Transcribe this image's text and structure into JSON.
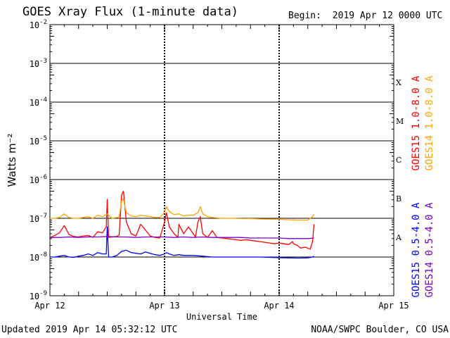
{
  "header": {
    "title": "GOES Xray Flux (1-minute data)",
    "begin_label": "Begin:",
    "begin_value": "2019 Apr 12 0000 UTC"
  },
  "footer": {
    "updated": "Updated 2019 Apr 14 05:32:12 UTC",
    "credit": "NOAA/SWPC Boulder, CO USA"
  },
  "chart_data": {
    "type": "line",
    "title": "GOES Xray Flux (1-minute data)",
    "xlabel": "Universal Time",
    "ylabel": "Watts m⁻²",
    "yscale": "log",
    "ylim": [
      1e-09,
      0.01
    ],
    "xlim": [
      0,
      72
    ],
    "x_units": "hours since 2019 Apr 12 0000 UTC",
    "x_ticks": [
      {
        "x": 0,
        "label": "Apr 12"
      },
      {
        "x": 24,
        "label": "Apr 13"
      },
      {
        "x": 48,
        "label": "Apr 14"
      },
      {
        "x": 72,
        "label": "Apr 15"
      }
    ],
    "y_ticks": [
      {
        "value": 1e-09,
        "base": "10",
        "exp": "-9"
      },
      {
        "value": 1e-08,
        "base": "10",
        "exp": "-8"
      },
      {
        "value": 1e-07,
        "base": "10",
        "exp": "-7"
      },
      {
        "value": 1e-06,
        "base": "10",
        "exp": "-6"
      },
      {
        "value": 1e-05,
        "base": "10",
        "exp": "-5"
      },
      {
        "value": 0.0001,
        "base": "10",
        "exp": "-4"
      },
      {
        "value": 0.001,
        "base": "10",
        "exp": "-3"
      },
      {
        "value": 0.01,
        "base": "10",
        "exp": "-2"
      }
    ],
    "flare_classes": [
      {
        "label": "A",
        "value": 3.2e-08
      },
      {
        "label": "B",
        "value": 3.2e-07
      },
      {
        "label": "C",
        "value": 3.2e-06
      },
      {
        "label": "M",
        "value": 3.2e-05
      },
      {
        "label": "X",
        "value": 0.00032
      }
    ],
    "grid": "horizontal decade lines, dashed day separators",
    "legend_placement": "right",
    "series": [
      {
        "name": "GOES15 1.0-8.0 A",
        "color": "#ff0000",
        "x": [
          0,
          1,
          2,
          3,
          4,
          5,
          6,
          7,
          8,
          9,
          10,
          11,
          11.8,
          12,
          12.3,
          13,
          14,
          14.5,
          15,
          15.4,
          15.7,
          16,
          17,
          18,
          19,
          20,
          21,
          22,
          23,
          24,
          24.4,
          25,
          26,
          26.8,
          27,
          28,
          29,
          30,
          30.5,
          31,
          31.5,
          32,
          33,
          34,
          35,
          36,
          37,
          38,
          39,
          40,
          41,
          42,
          43,
          44,
          45,
          46,
          47,
          48,
          49,
          50,
          50.8,
          51,
          51.8,
          52.5,
          53.5,
          54.5,
          55,
          55.3
        ],
        "y": [
          3.2e-08,
          3.6e-08,
          4.2e-08,
          6.5e-08,
          3.8e-08,
          3.4e-08,
          3.3e-08,
          3.5e-08,
          3.6e-08,
          3.2e-08,
          4.5e-08,
          4.2e-08,
          6e-08,
          3.1e-07,
          3.2e-08,
          3.3e-08,
          3.4e-08,
          3.7e-08,
          4e-07,
          5e-07,
          2e-07,
          8e-08,
          4e-08,
          3.5e-08,
          7e-08,
          5e-08,
          3.5e-08,
          3.2e-08,
          3.1e-08,
          8e-08,
          1.4e-07,
          6e-08,
          4e-08,
          3.2e-08,
          7e-08,
          4e-08,
          6e-08,
          4e-08,
          3.3e-08,
          8e-08,
          1.1e-07,
          4e-08,
          3.2e-08,
          4.8e-08,
          3.2e-08,
          3.1e-08,
          3e-08,
          2.9e-08,
          2.8e-08,
          2.7e-08,
          2.8e-08,
          2.7e-08,
          2.6e-08,
          2.5e-08,
          2.4e-08,
          2.3e-08,
          2.2e-08,
          2.3e-08,
          2.2e-08,
          2.1e-08,
          2.5e-08,
          2.2e-08,
          2e-08,
          1.7e-08,
          1.8e-08,
          1.6e-08,
          2.5e-08,
          7e-08
        ]
      },
      {
        "name": "GOES14 1.0-8.0 A",
        "color": "#ffa500",
        "x": [
          0,
          1,
          2,
          3,
          4,
          5,
          6,
          7,
          8,
          9,
          10,
          11,
          12,
          13,
          14,
          14.5,
          15,
          15.4,
          15.7,
          16,
          17,
          18,
          19,
          20,
          21,
          22,
          23,
          24,
          24.4,
          25,
          26,
          27,
          28,
          29,
          30,
          31,
          31.5,
          32,
          33,
          34,
          36,
          38,
          40,
          42,
          44,
          46,
          48,
          50,
          52,
          54,
          55,
          55.3
        ],
        "y": [
          1e-07,
          1e-07,
          1.05e-07,
          1.3e-07,
          1.05e-07,
          1e-07,
          1e-07,
          1.05e-07,
          1.1e-07,
          1e-07,
          1.2e-07,
          1.1e-07,
          1.3e-07,
          1e-07,
          1.05e-07,
          1.1e-07,
          2.8e-07,
          3.2e-07,
          2e-07,
          1.4e-07,
          1.15e-07,
          1.1e-07,
          1.2e-07,
          1.15e-07,
          1.1e-07,
          1.05e-07,
          1.05e-07,
          1.4e-07,
          2e-07,
          1.5e-07,
          1.25e-07,
          1.3e-07,
          1.15e-07,
          1.2e-07,
          1.2e-07,
          1.4e-07,
          2e-07,
          1.3e-07,
          1.1e-07,
          1.05e-07,
          1e-07,
          1e-07,
          9.8e-08,
          9.8e-08,
          9.6e-08,
          9.5e-08,
          9.4e-08,
          9.2e-08,
          9e-08,
          9e-08,
          1.1e-07,
          1.3e-07
        ]
      },
      {
        "name": "GOES15 0.5-4.0 A",
        "color": "#0000ff",
        "x": [
          0,
          1,
          2,
          3,
          4,
          5,
          6,
          7,
          8,
          9,
          10,
          11,
          11.8,
          12,
          12.3,
          13,
          14,
          15,
          16,
          17,
          18,
          19,
          20,
          21,
          22,
          23,
          24,
          24.4,
          25,
          26,
          27,
          28,
          30,
          32,
          34,
          36,
          38,
          40,
          42,
          44,
          46,
          48,
          50,
          52,
          54,
          55,
          55.3
        ],
        "y": [
          1e-08,
          1e-08,
          1.05e-08,
          1.1e-08,
          1e-08,
          9.8e-09,
          1.05e-08,
          1.1e-08,
          1.2e-08,
          1.1e-08,
          1.3e-08,
          1.2e-08,
          1.2e-08,
          6e-08,
          1e-08,
          1e-08,
          1.1e-08,
          1.4e-08,
          1.5e-08,
          1.3e-08,
          1.25e-08,
          1.2e-08,
          1.35e-08,
          1.25e-08,
          1.15e-08,
          1.1e-08,
          1.2e-08,
          1.3e-08,
          1.2e-08,
          1.1e-08,
          1.15e-08,
          1.1e-08,
          1.1e-08,
          1.05e-08,
          1e-08,
          1e-08,
          1e-08,
          1e-08,
          1e-08,
          1e-08,
          9.8e-09,
          9.6e-09,
          9.5e-09,
          9.4e-09,
          9.5e-09,
          1e-08,
          1.05e-08
        ]
      },
      {
        "name": "GOES14 0.5-4.0 A",
        "color": "#7b00c8",
        "x": [
          0,
          2,
          4,
          6,
          8,
          10,
          12,
          14,
          16,
          18,
          20,
          22,
          24,
          26,
          28,
          30,
          32,
          34,
          36,
          38,
          40,
          42,
          44,
          46,
          48,
          50,
          52,
          54,
          55.3
        ],
        "y": [
          3.2e-08,
          3.2e-08,
          3.3e-08,
          3.2e-08,
          3.3e-08,
          3.3e-08,
          3.4e-08,
          3.3e-08,
          3.3e-08,
          3.2e-08,
          3.3e-08,
          3.3e-08,
          3.3e-08,
          3.2e-08,
          3.3e-08,
          3.2e-08,
          3.3e-08,
          3.2e-08,
          3.2e-08,
          3.2e-08,
          3.2e-08,
          3.1e-08,
          3.1e-08,
          3.1e-08,
          3.1e-08,
          3e-08,
          3e-08,
          3e-08,
          3.1e-08
        ]
      }
    ]
  }
}
